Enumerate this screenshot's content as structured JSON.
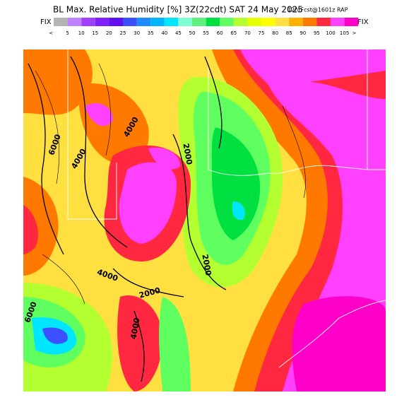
{
  "header": {
    "title": "BL Max. Relative Humidity [%] 3Z(22cdt) SAT 24 May 2025",
    "subtitle": "12hrFcst@1601z RAP",
    "fix_left": "FIX",
    "fix_right": "FIX"
  },
  "colorbar": {
    "colors": [
      "#b4b4b4",
      "#c080ff",
      "#a040ff",
      "#8020ff",
      "#6010f0",
      "#3c50ff",
      "#1e8cff",
      "#00b4ff",
      "#00e6ff",
      "#80ffd0",
      "#60f080",
      "#00e040",
      "#60ff60",
      "#b4ff30",
      "#e6ff00",
      "#ffff00",
      "#ffe040",
      "#ffb000",
      "#ff7800",
      "#ff2840",
      "#ff40ff",
      "#ff00c8"
    ],
    "labels": [
      "<",
      "5",
      "10",
      "15",
      "20",
      "25",
      "30",
      "35",
      "40",
      "45",
      "50",
      "55",
      "60",
      "65",
      "70",
      "75",
      "80",
      "85",
      "90",
      "95",
      "100",
      "105",
      ">"
    ]
  },
  "contour_labels": [
    "6000",
    "4000",
    "4000",
    "2000",
    "2000",
    "4000",
    "2000",
    "4000",
    "6000"
  ]
}
